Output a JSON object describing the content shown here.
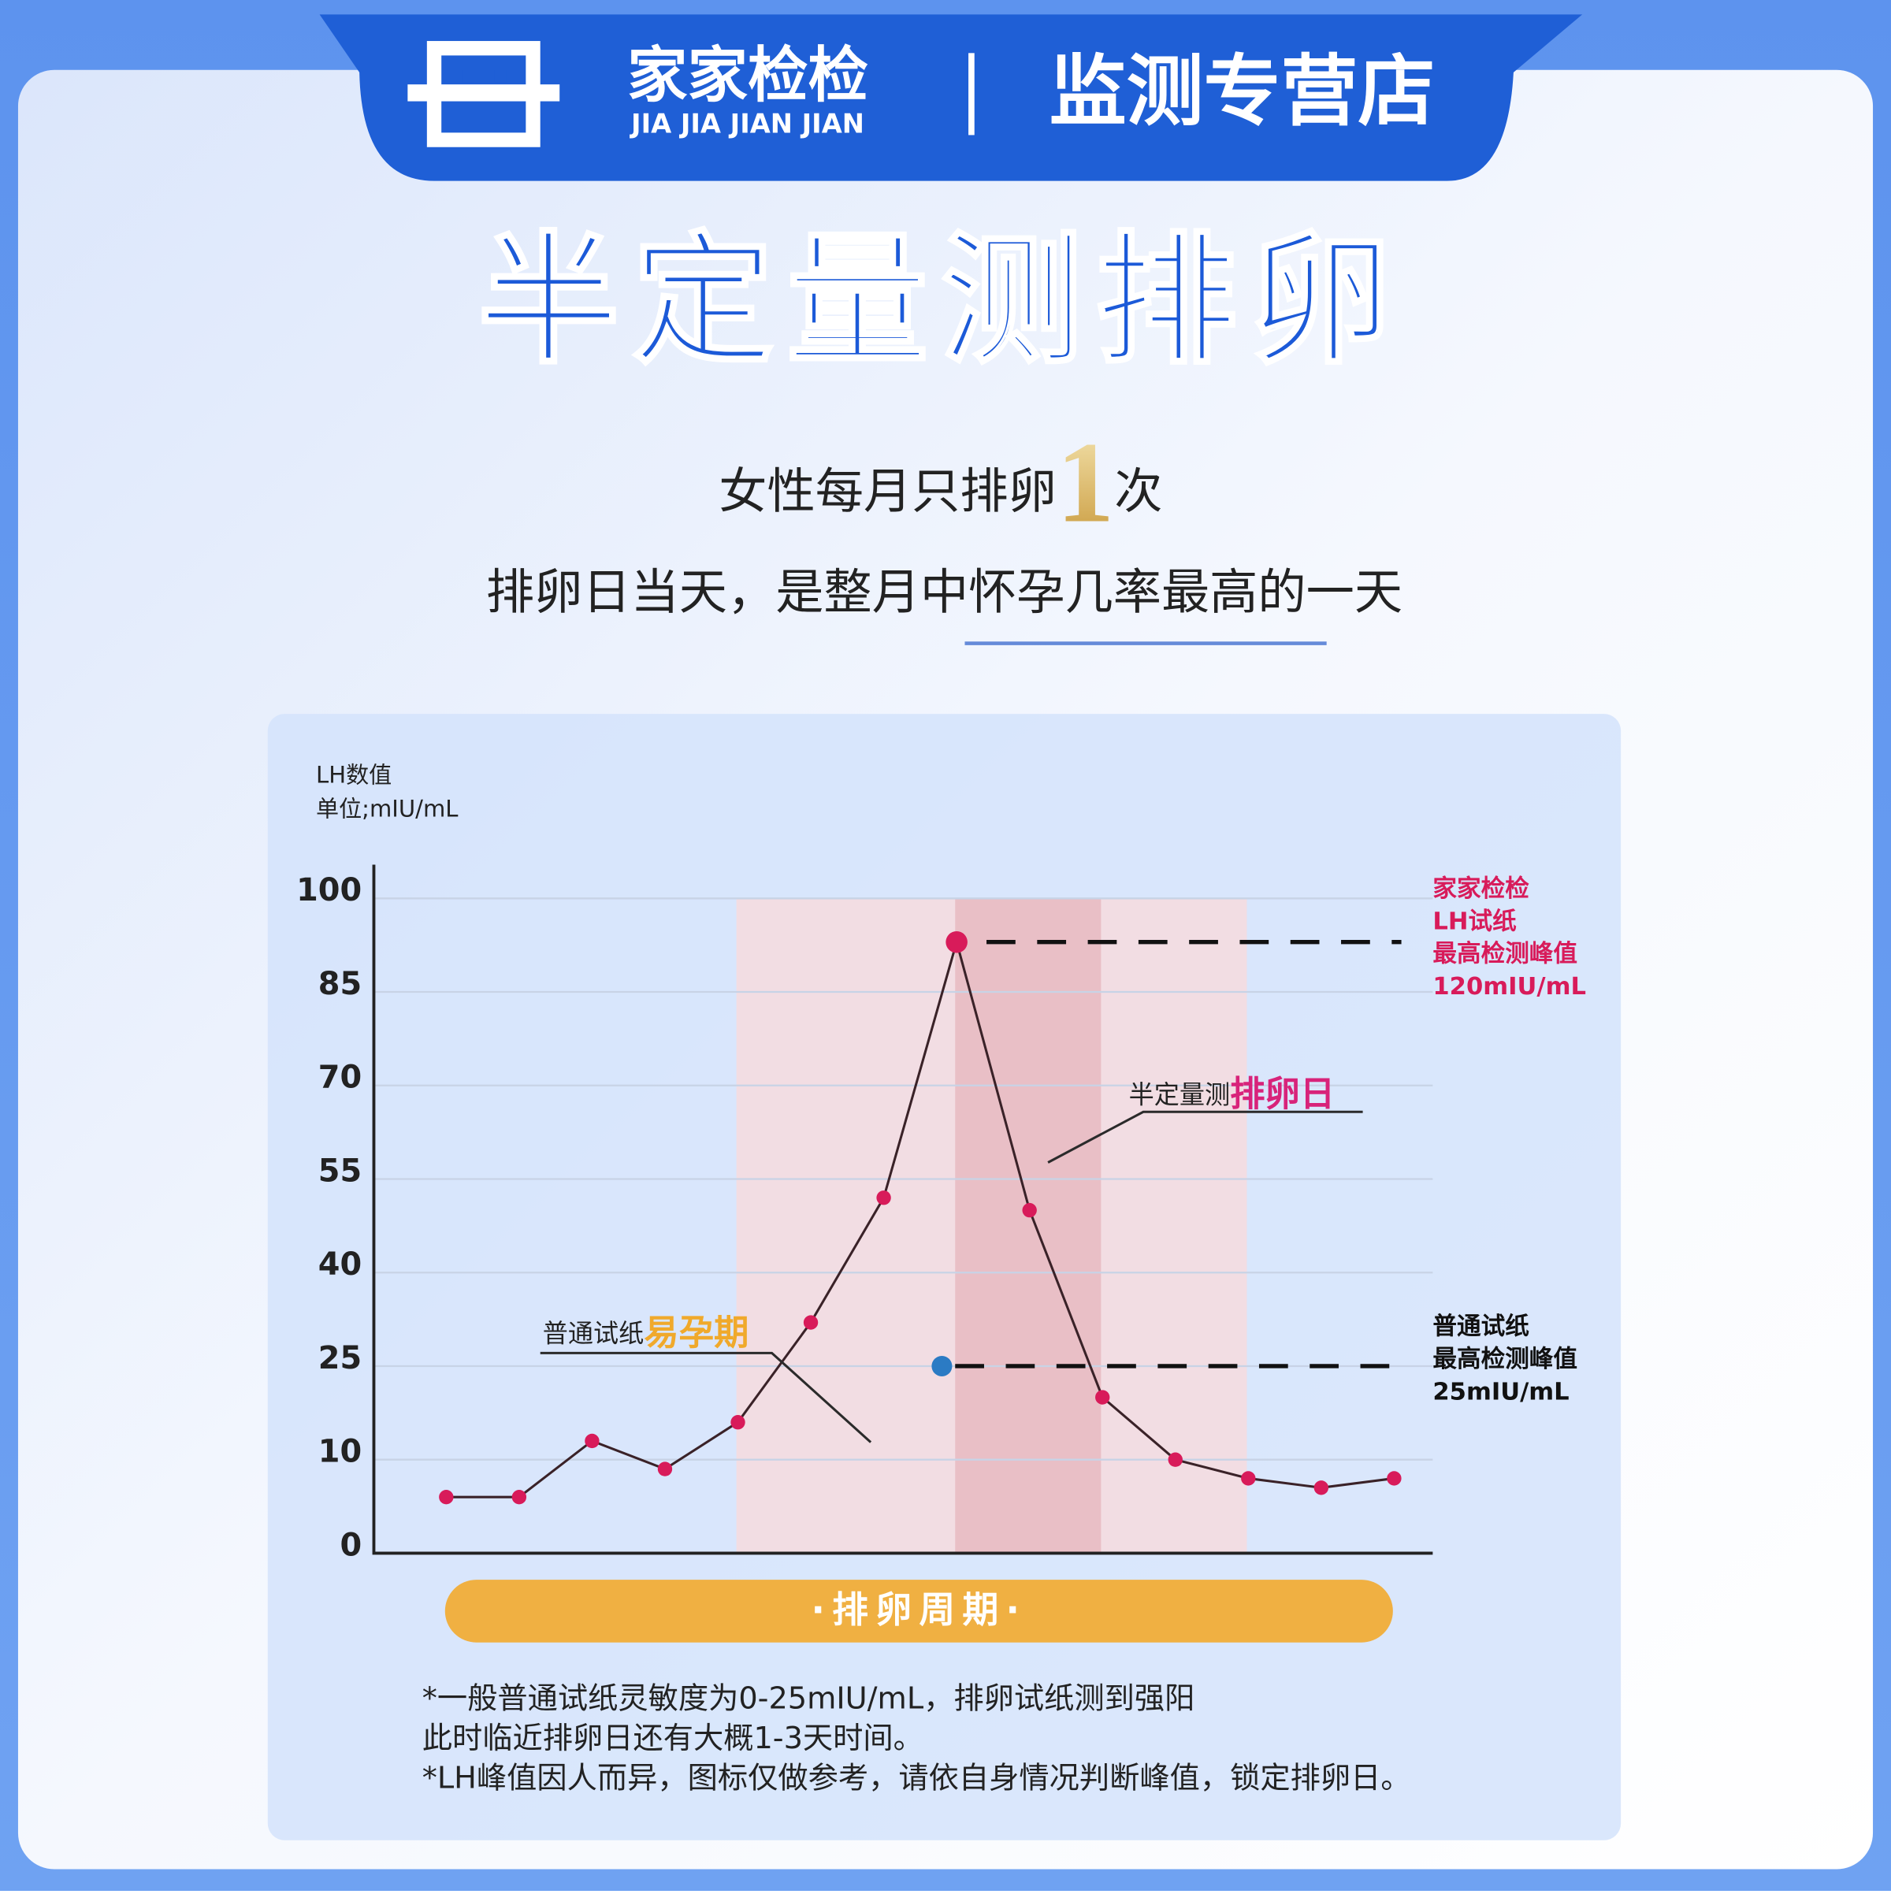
{
  "header": {
    "brand": "家家检检",
    "brand_en": "JIA JIA JIAN JIAN",
    "store": "监测专营店"
  },
  "title": "半定量测排卵",
  "subtitle": {
    "before": "女性每月只排卵",
    "number": "1",
    "after": "次"
  },
  "tagline": "排卵日当天，是整月中怀孕几率最高的一天",
  "notes": [
    "*一般普通试纸灵敏度为0-25mIU/mL，排卵试纸测到强阳",
    "此时临近排卵日还有大概1-3天时间。",
    "*LH峰值因人而异，图标仅做参考，请依自身情况判断峰值，锁定排卵日。"
  ],
  "chart_data": {
    "type": "line",
    "y_label": [
      "LH数值",
      "单位;mIU/mL"
    ],
    "x_label": "·排卵周期·",
    "categories": [
      null,
      null,
      null,
      null,
      null,
      null,
      null,
      null,
      null,
      null,
      null,
      null,
      null,
      null
    ],
    "series": [
      {
        "color": "#d81b5a",
        "values": [
          6,
          6,
          13,
          9,
          16,
          32,
          52,
          93,
          50,
          20,
          10,
          8,
          7,
          8
        ]
      }
    ],
    "reference_point": {
      "value": 25,
      "color": "#2b7bc4"
    },
    "ylim": [
      0,
      100
    ],
    "yticks": [
      0,
      10,
      25,
      40,
      55,
      70,
      85,
      100
    ],
    "grid": true,
    "bands": [
      {
        "from": 4,
        "to": 11,
        "color": "#f2dde3"
      },
      {
        "from": 7,
        "to": 9,
        "color": "#e9bfc6"
      }
    ],
    "annotations": {
      "peak": [
        "家家检检",
        "LH试纸",
        "最高检测峰值",
        "120mIU/mL"
      ],
      "normal_peak": [
        "普通试纸",
        "最高检测峰值",
        "25mIU/mL"
      ],
      "ovulation": {
        "text": "半定量测",
        "emphasis": "排卵日"
      },
      "fertile": {
        "text": "普通试纸",
        "emphasis": "易孕期"
      }
    }
  }
}
